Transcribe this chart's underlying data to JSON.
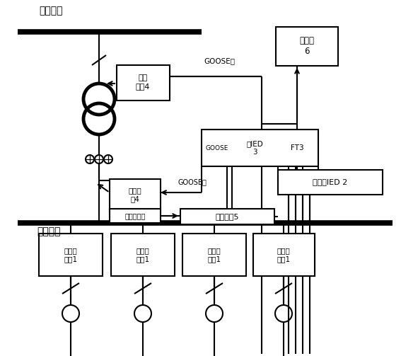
{
  "figsize": [
    5.67,
    5.03
  ],
  "dpi": 100,
  "bg": "#ffffff",
  "lc": "#000000",
  "lw_bus": 5.5,
  "lw_n": 1.5,
  "lw_thick": 3.5,
  "labels": {
    "hv_bus": "高压母线",
    "lv_bus": "低压母线",
    "smart_top": "智能\n终端4",
    "smart_bot": "智能终\n端4",
    "arc_small": "弧光传感器",
    "merge": "合并单元5",
    "goose_top": "GOOSE跳",
    "goose_bot": "GOOSE跳",
    "station": "站控层\n6",
    "sensor_ied": "传感器IED 2",
    "goose_cell": "GOOSE",
    "ied_cell": "主IED\n3",
    "ft3_cell": "FT3",
    "arc1": "弧光传\n感器1",
    "arc2": "弧光传\n感器1",
    "arc3": "弧光传\n感器1",
    "arc4": "弧光传\n感器1"
  }
}
